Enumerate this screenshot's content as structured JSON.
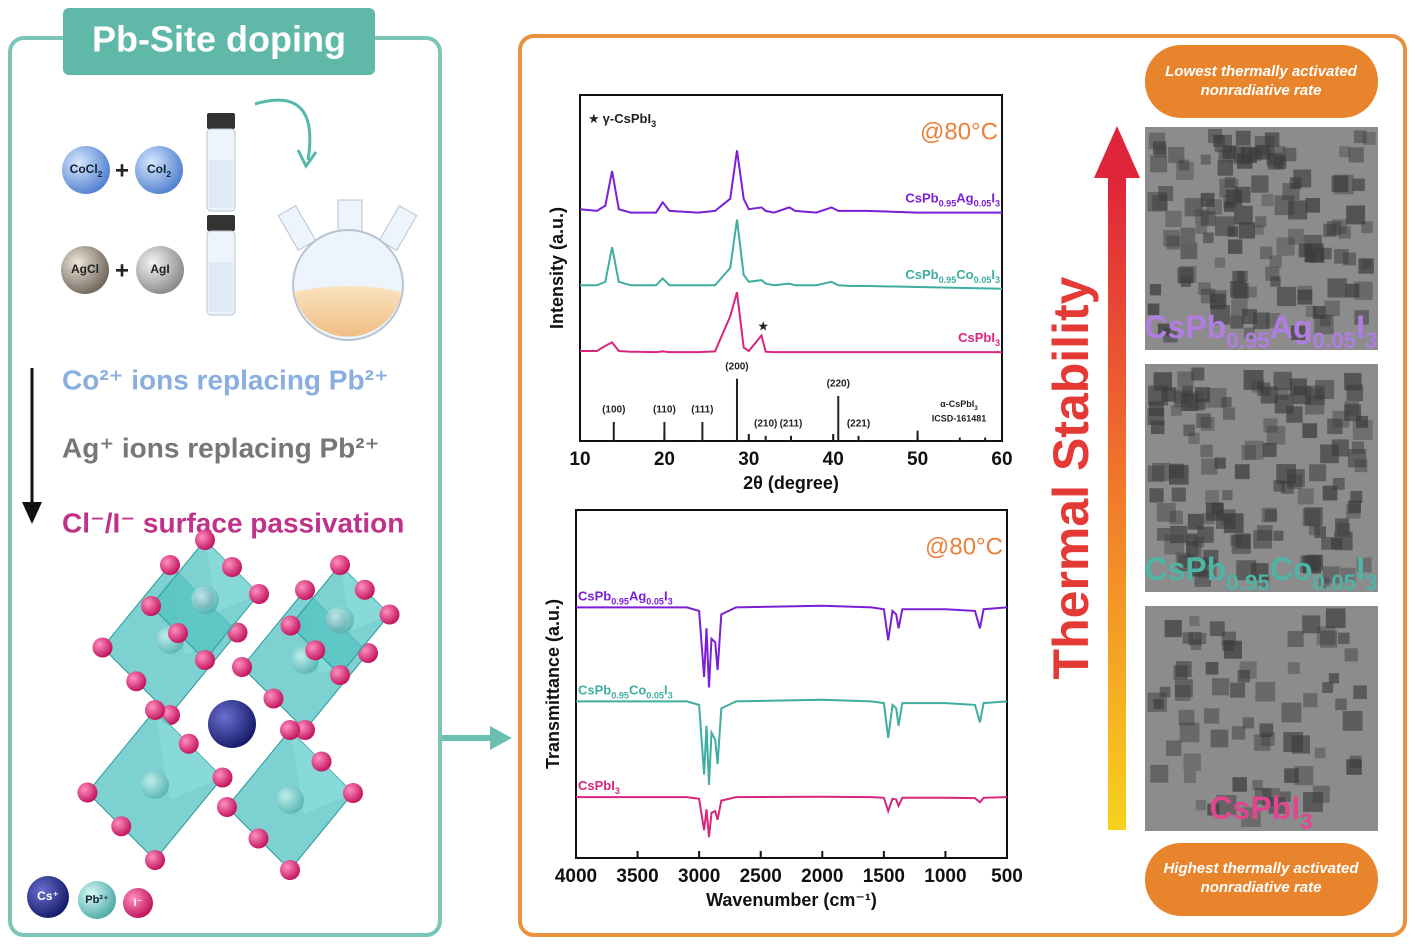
{
  "left_panel": {
    "title": "Pb-Site doping",
    "precursors": [
      "CoCl2",
      "CoI2",
      "AgCl",
      "AgI"
    ],
    "plus": "+",
    "mechanisms": [
      "Co²⁺ ions replacing Pb²⁺",
      "Ag⁺ ions replacing Pb²⁺",
      "Cl⁻/I⁻ surface passivation"
    ],
    "legend": [
      "Cs⁺",
      "Pb²⁺",
      "I⁻"
    ]
  },
  "chart_data": [
    {
      "type": "line",
      "y_label": "Intensity (a.u.)",
      "x_label": "2θ (degree)",
      "annotation": "@80°C",
      "marker_legend": {
        "symbol": "★",
        "name": "γ-CsPbI3"
      },
      "peak_marker": {
        "x": 31.7,
        "y": 33
      },
      "label_side": "right",
      "x": [
        10,
        12,
        13,
        13.8,
        14.6,
        16,
        19,
        19.8,
        20.6,
        24,
        26,
        27.8,
        28.6,
        29.4,
        30,
        31.5,
        32,
        33,
        34.8,
        35.5,
        38,
        39.8,
        40.6,
        42,
        44,
        50,
        60
      ],
      "series": [
        {
          "name": "CsPb0.95Ag0.05I3",
          "color": "#7b1fd6",
          "values": [
            67,
            66.5,
            68,
            78,
            67,
            66,
            66,
            69,
            66.5,
            66,
            66.5,
            70,
            84,
            70,
            67,
            67.5,
            66.5,
            66,
            67.5,
            66.5,
            66,
            67.5,
            66.5,
            66.5,
            66.5,
            66,
            66
          ]
        },
        {
          "name": "CsPb0.95Co0.05I3",
          "color": "#3fada0",
          "values": [
            45,
            45,
            46,
            56,
            46,
            45,
            45,
            47,
            45,
            45,
            45,
            50,
            64,
            48,
            46,
            46.5,
            45.5,
            45,
            45.5,
            45,
            45,
            46,
            45,
            44.8,
            44.8,
            44.5,
            44
          ]
        },
        {
          "name": "CsPbI3",
          "color": "#d6267e",
          "values": [
            26,
            26,
            27.5,
            28.5,
            26,
            25.8,
            25.7,
            25.9,
            25.7,
            25.7,
            25.9,
            36,
            43,
            27,
            26,
            30.5,
            25.8,
            25.7,
            25.7,
            25.7,
            25.7,
            25.7,
            25.7,
            25.7,
            25.7,
            25.7,
            25.7
          ]
        }
      ],
      "reference": {
        "name": "α-CsPbI3",
        "source": "ICSD-161481",
        "color": "#222222",
        "peaks": [
          {
            "label": "(100)",
            "x": 14.0,
            "height": 5.5
          },
          {
            "label": "(110)",
            "x": 20.0,
            "height": 5.5
          },
          {
            "label": "(111)",
            "x": 24.5,
            "height": 5.5
          },
          {
            "label": "(200)",
            "x": 28.6,
            "height": 18
          },
          {
            "label": "(210)",
            "x": 32.0,
            "height": 1.5
          },
          {
            "label": "(211)",
            "x": 35.0,
            "height": 1.5
          },
          {
            "label": "(220)",
            "x": 40.6,
            "height": 13
          },
          {
            "label": "(221)",
            "x": 43.0,
            "height": 1.5
          },
          {
            "label": null,
            "x": 50.0,
            "height": 3
          },
          {
            "label": null,
            "x": 55.0,
            "height": 1
          },
          {
            "label": null,
            "x": 58.0,
            "height": 1
          }
        ]
      },
      "xlim": [
        10,
        60
      ],
      "xticks": [
        10,
        20,
        30,
        40,
        50,
        60
      ],
      "ylim": [
        0,
        100
      ]
    },
    {
      "type": "line",
      "y_label": "Transmittance (a.u.)",
      "x_label": "Wavenumber (cm⁻¹)",
      "annotation": "@80°C",
      "label_side": "left",
      "x": [
        4000,
        3500,
        3100,
        3000,
        2960,
        2940,
        2920,
        2900,
        2870,
        2850,
        2820,
        2700,
        2000,
        1600,
        1500,
        1465,
        1430,
        1400,
        1380,
        1350,
        1000,
        760,
        720,
        690,
        500
      ],
      "series": [
        {
          "name": "CsPb0.95Ag0.05I3",
          "color": "#7b1fd6",
          "values": [
            72,
            72,
            72,
            71,
            52,
            66,
            49,
            63,
            62,
            54,
            70,
            72,
            72.5,
            72,
            71.5,
            62.6,
            71,
            70,
            66,
            71.5,
            71.5,
            71,
            66,
            71.5,
            72
          ]
        },
        {
          "name": "CsPb0.95Co0.05I3",
          "color": "#3fada0",
          "values": [
            45,
            45,
            45,
            44,
            24,
            38,
            21,
            36,
            34,
            27,
            43,
            45,
            45.5,
            45,
            44.5,
            34.5,
            44,
            43,
            38,
            44.5,
            44.5,
            44,
            39,
            44.5,
            45
          ]
        },
        {
          "name": "CsPbI3",
          "color": "#d6267e",
          "values": [
            17.5,
            17.5,
            17.5,
            17,
            8,
            14,
            6,
            13,
            13.5,
            11,
            16.5,
            17.5,
            17.6,
            17.5,
            17.3,
            13.5,
            17,
            16.8,
            15,
            17.3,
            17.3,
            17.2,
            16,
            17.3,
            17.5
          ]
        }
      ],
      "xlim": [
        4000,
        500
      ],
      "xticks": [
        4000,
        3500,
        3000,
        2500,
        2000,
        1500,
        1000,
        500
      ],
      "ylim": [
        0,
        100
      ]
    }
  ],
  "right_panel": {
    "axis_label": "Thermal Stability",
    "top_note": [
      "Lowest thermally activated",
      "nonradiative rate"
    ],
    "bottom_note": [
      "Highest thermally activated",
      "nonradiative rate"
    ],
    "images": [
      {
        "label": "CsPb0.95Ag0.05I3",
        "color": "#b07ee0"
      },
      {
        "label": "CsPb0.95Co0.05I3",
        "color": "#4fb3a6"
      },
      {
        "label": "CsPbI3",
        "color": "#e0468f"
      }
    ]
  }
}
